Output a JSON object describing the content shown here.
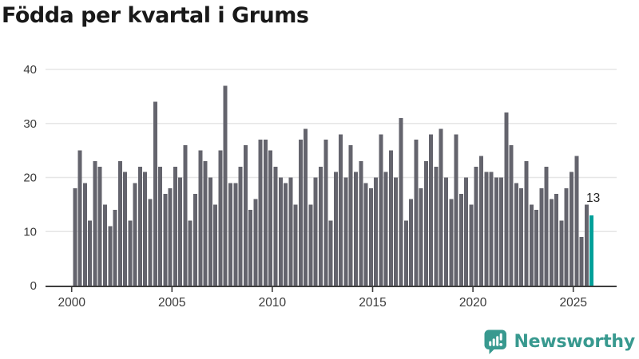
{
  "title": "Födda per kvartal i Grums",
  "annotation": {
    "label": "13"
  },
  "branding": {
    "name": "Newsworthy",
    "icon": "newsworthy-chart-speech-bubble-icon",
    "color": "#38998F"
  },
  "chart_data": {
    "type": "bar",
    "title": "Födda per kvartal i Grums",
    "xlabel": "",
    "ylabel": "",
    "frequency": "quarterly",
    "start_period": "2000 Q1",
    "end_period": "2025 Q4",
    "x_tick_labels": [
      "2000",
      "2005",
      "2010",
      "2015",
      "2020",
      "2025"
    ],
    "x_tick_years": [
      2000,
      2005,
      2010,
      2015,
      2020,
      2025
    ],
    "y_tick_labels": [
      "0",
      "10",
      "20",
      "30",
      "40"
    ],
    "y_ticks": [
      0,
      10,
      20,
      30,
      40
    ],
    "ylim": [
      0,
      40
    ],
    "grid": true,
    "legend_position": "none",
    "bar_color": "#64646D",
    "highlight_color": "#00A099",
    "highlight_index": 103,
    "last_value_label": "13",
    "values": [
      18,
      25,
      19,
      12,
      23,
      22,
      15,
      11,
      14,
      23,
      21,
      12,
      19,
      22,
      21,
      16,
      34,
      22,
      17,
      18,
      22,
      20,
      26,
      12,
      17,
      25,
      23,
      20,
      15,
      25,
      37,
      19,
      19,
      22,
      26,
      14,
      16,
      27,
      27,
      25,
      22,
      20,
      19,
      20,
      15,
      27,
      29,
      15,
      20,
      22,
      27,
      12,
      21,
      28,
      20,
      26,
      21,
      23,
      19,
      18,
      20,
      28,
      21,
      25,
      20,
      31,
      12,
      16,
      27,
      18,
      23,
      28,
      22,
      29,
      20,
      16,
      28,
      17,
      20,
      15,
      22,
      24,
      21,
      21,
      20,
      20,
      32,
      26,
      19,
      18,
      23,
      15,
      14,
      18,
      22,
      16,
      17,
      12,
      18,
      21,
      24,
      9,
      15,
      13
    ]
  }
}
